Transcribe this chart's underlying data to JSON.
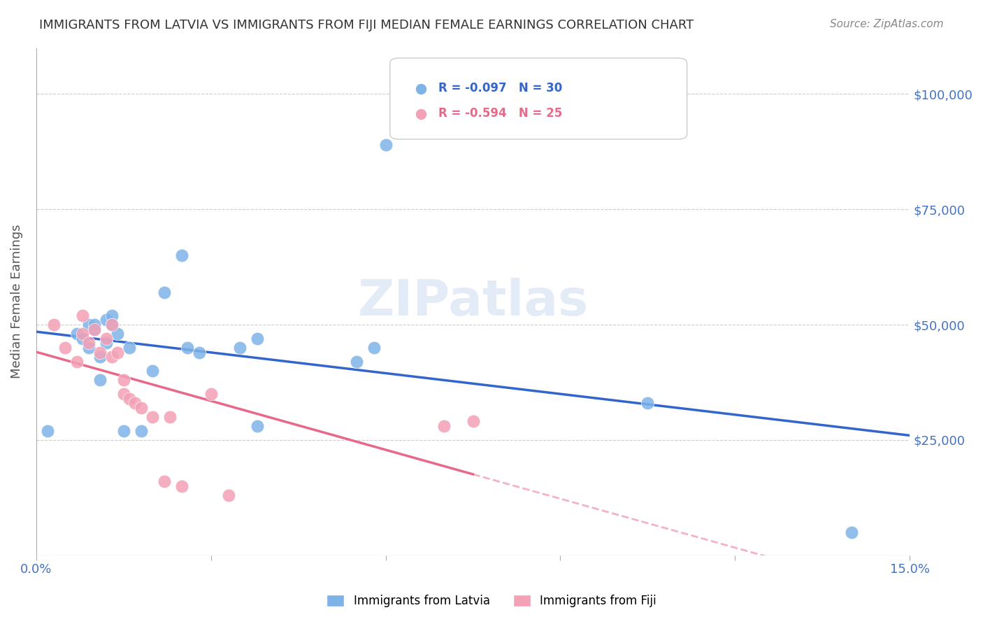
{
  "title": "IMMIGRANTS FROM LATVIA VS IMMIGRANTS FROM FIJI MEDIAN FEMALE EARNINGS CORRELATION CHART",
  "source": "Source: ZipAtlas.com",
  "xlabel": "",
  "ylabel": "Median Female Earnings",
  "xlim": [
    0.0,
    0.15
  ],
  "ylim": [
    0,
    110000
  ],
  "yticks": [
    0,
    25000,
    50000,
    75000,
    100000
  ],
  "ytick_labels": [
    "",
    "$25,000",
    "$50,000",
    "$75,000",
    "$100,000"
  ],
  "xticks": [
    0.0,
    0.03,
    0.06,
    0.09,
    0.12,
    0.15
  ],
  "xtick_labels": [
    "0.0%",
    "",
    "",
    "",
    "",
    "15.0%"
  ],
  "background_color": "#ffffff",
  "grid_color": "#cccccc",
  "watermark": "ZIPatlas",
  "latvia_color": "#7EB3E8",
  "fiji_color": "#F4A0B5",
  "latvia_line_color": "#3366CC",
  "fiji_line_color": "#E8688A",
  "title_color": "#333333",
  "label_color": "#4472C4",
  "legend_r_latvia": "R = -0.097",
  "legend_n_latvia": "N = 30",
  "legend_r_fiji": "R = -0.594",
  "legend_n_fiji": "N = 25",
  "latvia_x": [
    0.002,
    0.007,
    0.008,
    0.009,
    0.009,
    0.01,
    0.01,
    0.011,
    0.011,
    0.012,
    0.012,
    0.013,
    0.013,
    0.014,
    0.015,
    0.016,
    0.018,
    0.02,
    0.022,
    0.025,
    0.026,
    0.028,
    0.035,
    0.038,
    0.038,
    0.055,
    0.058,
    0.06,
    0.105,
    0.14
  ],
  "latvia_y": [
    27000,
    48000,
    47000,
    50000,
    45000,
    49000,
    50000,
    43000,
    38000,
    51000,
    46000,
    52000,
    50000,
    48000,
    27000,
    45000,
    27000,
    40000,
    57000,
    65000,
    45000,
    44000,
    45000,
    47000,
    28000,
    42000,
    45000,
    89000,
    33000,
    5000
  ],
  "fiji_x": [
    0.003,
    0.005,
    0.007,
    0.008,
    0.008,
    0.009,
    0.01,
    0.011,
    0.012,
    0.013,
    0.013,
    0.014,
    0.015,
    0.015,
    0.016,
    0.017,
    0.018,
    0.02,
    0.022,
    0.023,
    0.025,
    0.03,
    0.033,
    0.07,
    0.075
  ],
  "fiji_y": [
    50000,
    45000,
    42000,
    52000,
    48000,
    46000,
    49000,
    44000,
    47000,
    50000,
    43000,
    44000,
    38000,
    35000,
    34000,
    33000,
    32000,
    30000,
    16000,
    30000,
    15000,
    35000,
    13000,
    28000,
    29000
  ]
}
